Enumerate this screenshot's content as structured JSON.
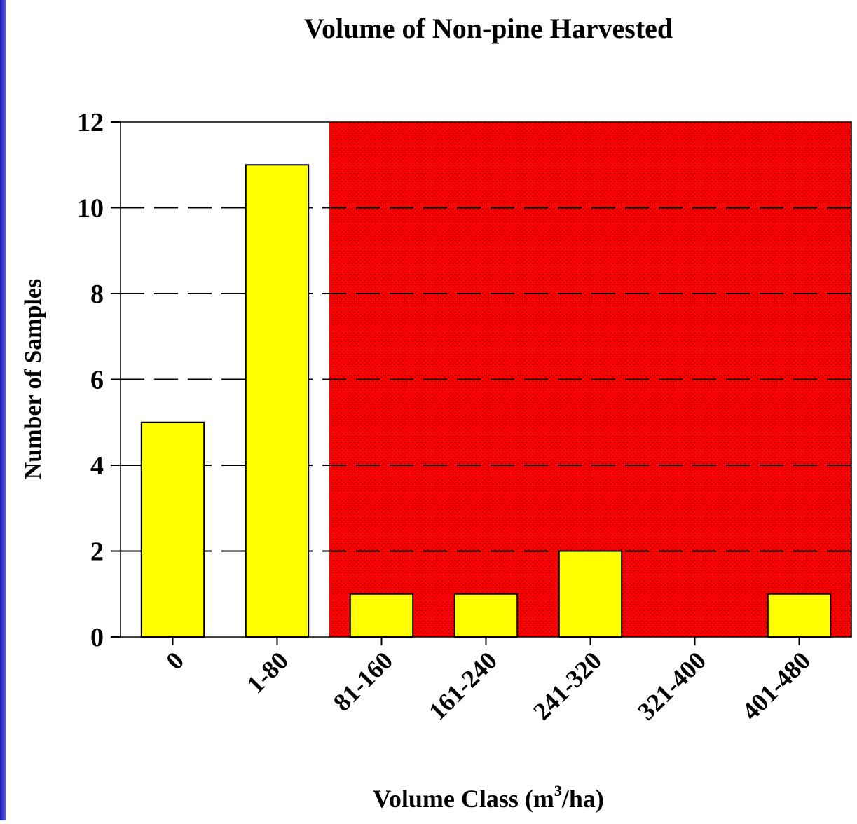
{
  "chart_data": {
    "type": "bar",
    "title": "Volume of Non-pine Harvested",
    "xlabel": [
      "Volume Class (m",
      "3",
      "/ha)"
    ],
    "ylabel": "Number of Samples",
    "categories": [
      "0",
      "1-80",
      "81-160",
      "161-240",
      "241-320",
      "321-400",
      "401-480"
    ],
    "values": [
      5,
      11,
      1,
      1,
      2,
      0,
      1
    ],
    "color": "#ffff00",
    "ylim": [
      0,
      12
    ],
    "yticks": [
      0,
      2,
      4,
      6,
      8,
      10,
      12
    ],
    "grid": true,
    "shaded_from": "81-160",
    "shade_color": "#ff0000"
  }
}
